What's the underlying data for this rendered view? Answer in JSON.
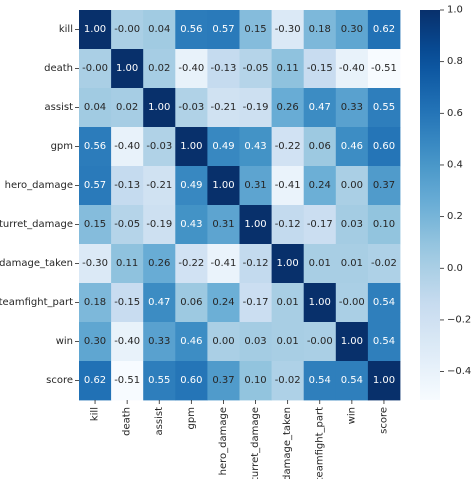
{
  "chart_data": {
    "type": "heatmap",
    "title": "",
    "xlabel": "",
    "ylabel": "",
    "labels": [
      "kill",
      "death",
      "assist",
      "gpm",
      "hero_damage",
      "turret_damage",
      "damage_taken",
      "teamfight_part",
      "win",
      "score"
    ],
    "matrix": [
      [
        "1.00",
        "-0.00",
        "0.04",
        "0.56",
        "0.57",
        "0.15",
        "-0.30",
        "0.18",
        "0.30",
        "0.62"
      ],
      [
        "-0.00",
        "1.00",
        "0.02",
        "-0.40",
        "-0.13",
        "-0.05",
        "0.11",
        "-0.15",
        "-0.40",
        "-0.51"
      ],
      [
        "0.04",
        "0.02",
        "1.00",
        "-0.03",
        "-0.21",
        "-0.19",
        "0.26",
        "0.47",
        "0.33",
        "0.55"
      ],
      [
        "0.56",
        "-0.40",
        "-0.03",
        "1.00",
        "0.49",
        "0.43",
        "-0.22",
        "0.06",
        "0.46",
        "0.60"
      ],
      [
        "0.57",
        "-0.13",
        "-0.21",
        "0.49",
        "1.00",
        "0.31",
        "-0.41",
        "0.24",
        "0.00",
        "0.37"
      ],
      [
        "0.15",
        "-0.05",
        "-0.19",
        "0.43",
        "0.31",
        "1.00",
        "-0.12",
        "-0.17",
        "0.03",
        "0.10"
      ],
      [
        "-0.30",
        "0.11",
        "0.26",
        "-0.22",
        "-0.41",
        "-0.12",
        "1.00",
        "0.01",
        "0.01",
        "-0.02"
      ],
      [
        "0.18",
        "-0.15",
        "0.47",
        "0.06",
        "0.24",
        "-0.17",
        "0.01",
        "1.00",
        "-0.00",
        "0.54"
      ],
      [
        "0.30",
        "-0.40",
        "0.33",
        "0.46",
        "0.00",
        "0.03",
        "0.01",
        "-0.00",
        "1.00",
        "0.54"
      ],
      [
        "0.62",
        "-0.51",
        "0.55",
        "0.60",
        "0.37",
        "0.10",
        "-0.02",
        "0.54",
        "0.54",
        "1.00"
      ]
    ],
    "colormap": "Blues",
    "vmin": -0.51,
    "vmax": 1.0,
    "colorbar_ticks": [
      "1.0",
      "0.8",
      "0.6",
      "0.4",
      "0.2",
      "0.0",
      "−0.2",
      "−0.4"
    ],
    "colorbar_tick_values": [
      1.0,
      0.8,
      0.6,
      0.4,
      0.2,
      0.0,
      -0.2,
      -0.4
    ],
    "annotation_color_light": "#ffffff",
    "annotation_color_dark": "#262626",
    "tick_color": "#262626"
  }
}
